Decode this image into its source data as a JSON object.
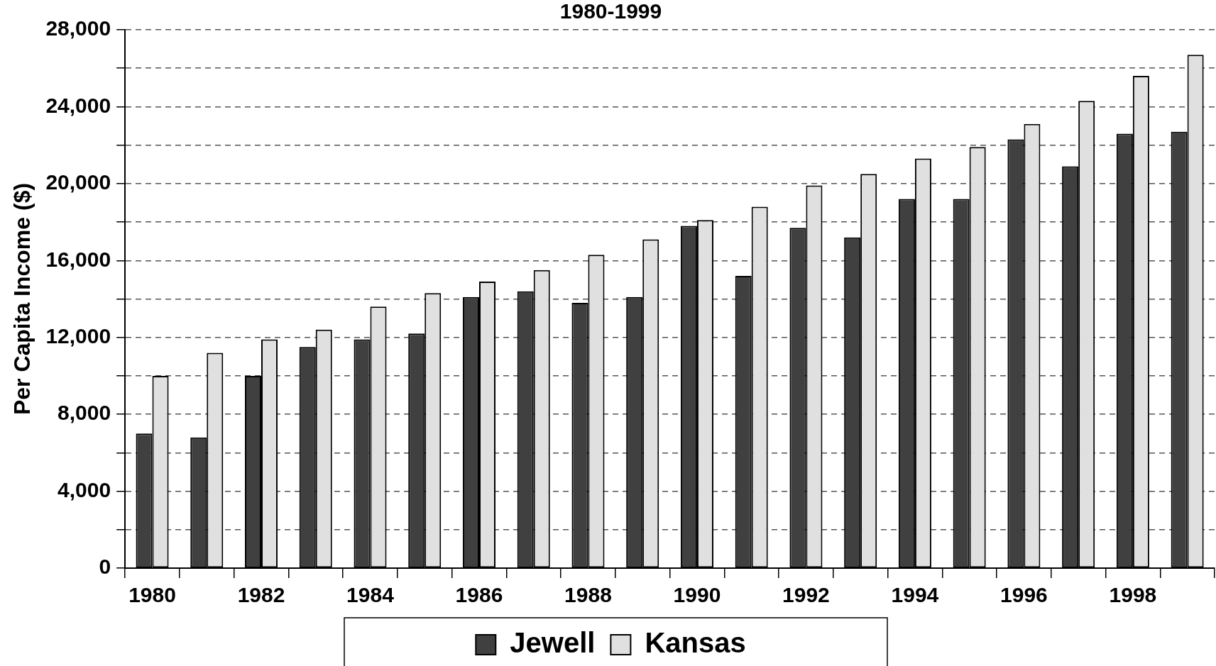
{
  "chart_data": {
    "type": "bar",
    "title": "1980-1999",
    "ylabel": "Per Capita Income ($)",
    "categories": [
      "1980",
      null,
      "1982",
      null,
      "1984",
      null,
      "1986",
      null,
      "1988",
      null,
      "1990",
      null,
      "1992",
      null,
      "1994",
      null,
      "1996",
      null,
      "1998",
      null
    ],
    "series": [
      {
        "name": "Jewell",
        "color": "#404040",
        "values": [
          7000,
          6800,
          10000,
          11500,
          11900,
          12200,
          14100,
          14400,
          13800,
          14100,
          17800,
          15200,
          17700,
          17200,
          19200,
          19200,
          22300,
          20900,
          22600,
          22700
        ]
      },
      {
        "name": "Kansas",
        "color": "#e0e0e0",
        "values": [
          10000,
          11200,
          11900,
          12400,
          13600,
          14300,
          14900,
          15500,
          16300,
          17100,
          18100,
          18800,
          19900,
          20500,
          21300,
          21900,
          23100,
          24300,
          25600,
          26700
        ]
      }
    ],
    "ylim": [
      0,
      28000
    ],
    "yticks": [
      0,
      {
        "value": 2000,
        "label": null
      },
      "4,000",
      {
        "value": 6000,
        "label": null
      },
      {
        "value": 8000,
        "label": "8,000"
      },
      {
        "value": 10000,
        "label": null
      },
      {
        "value": 12000,
        "label": "12,000"
      },
      {
        "value": 14000,
        "label": null
      },
      {
        "value": 16000,
        "label": "16,000"
      },
      {
        "value": 18000,
        "label": null
      },
      {
        "value": 20000,
        "label": "20,000"
      },
      {
        "value": 22000,
        "label": null
      },
      {
        "value": 24000,
        "label": "24,000"
      },
      {
        "value": 26000,
        "label": null
      },
      {
        "value": 28000,
        "label": "28,000"
      }
    ],
    "grid": "y",
    "legend": "bottom"
  }
}
